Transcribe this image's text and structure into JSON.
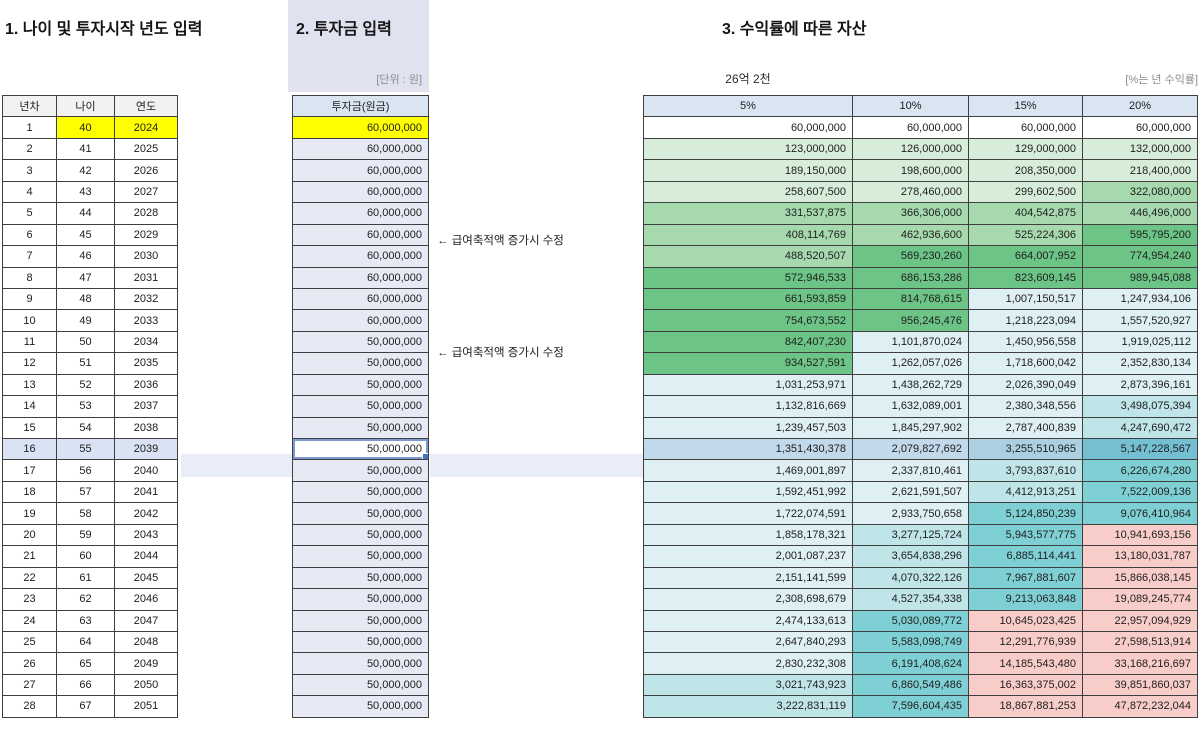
{
  "titles": {
    "section1": "1. 나이 및 투자시작 년도 입력",
    "section2": "2. 투자금 입력",
    "section3": "3. 수익률에 따른 자산"
  },
  "labels": {
    "unit": "[단위 : 원]",
    "summary": "26억 2천",
    "rate_note": "[%는 년 수익률]"
  },
  "left_table": {
    "headers": [
      "년차",
      "나이",
      "연도"
    ],
    "rows": [
      [
        1,
        40,
        2024
      ],
      [
        2,
        41,
        2025
      ],
      [
        3,
        42,
        2026
      ],
      [
        4,
        43,
        2027
      ],
      [
        5,
        44,
        2028
      ],
      [
        6,
        45,
        2029
      ],
      [
        7,
        46,
        2030
      ],
      [
        8,
        47,
        2031
      ],
      [
        9,
        48,
        2032
      ],
      [
        10,
        49,
        2033
      ],
      [
        11,
        50,
        2034
      ],
      [
        12,
        51,
        2035
      ],
      [
        13,
        52,
        2036
      ],
      [
        14,
        53,
        2037
      ],
      [
        15,
        54,
        2038
      ],
      [
        16,
        55,
        2039
      ],
      [
        17,
        56,
        2040
      ],
      [
        18,
        57,
        2041
      ],
      [
        19,
        58,
        2042
      ],
      [
        20,
        59,
        2043
      ],
      [
        21,
        60,
        2044
      ],
      [
        22,
        61,
        2045
      ],
      [
        23,
        62,
        2046
      ],
      [
        24,
        63,
        2047
      ],
      [
        25,
        64,
        2048
      ],
      [
        26,
        65,
        2049
      ],
      [
        27,
        66,
        2050
      ],
      [
        28,
        67,
        2051
      ]
    ]
  },
  "invest_table": {
    "header": "투자금(원금)",
    "values": [
      "60,000,000",
      "60,000,000",
      "60,000,000",
      "60,000,000",
      "60,000,000",
      "60,000,000",
      "60,000,000",
      "60,000,000",
      "60,000,000",
      "60,000,000",
      "50,000,000",
      "50,000,000",
      "50,000,000",
      "50,000,000",
      "50,000,000",
      "50,000,000",
      "50,000,000",
      "50,000,000",
      "50,000,000",
      "50,000,000",
      "50,000,000",
      "50,000,000",
      "50,000,000",
      "50,000,000",
      "50,000,000",
      "50,000,000",
      "50,000,000",
      "50,000,000"
    ]
  },
  "annotations": [
    {
      "row": 6,
      "text": "← 급여축적액 증가시 수정"
    },
    {
      "row": 11,
      "text": "← 급여축적액 증가시 수정"
    }
  ],
  "returns_table": {
    "headers": [
      "5%",
      "10%",
      "15%",
      "20%"
    ],
    "rows": [
      [
        "60,000,000",
        "60,000,000",
        "60,000,000",
        "60,000,000"
      ],
      [
        "123,000,000",
        "126,000,000",
        "129,000,000",
        "132,000,000"
      ],
      [
        "189,150,000",
        "198,600,000",
        "208,350,000",
        "218,400,000"
      ],
      [
        "258,607,500",
        "278,460,000",
        "299,602,500",
        "322,080,000"
      ],
      [
        "331,537,875",
        "366,306,000",
        "404,542,875",
        "446,496,000"
      ],
      [
        "408,114,769",
        "462,936,600",
        "525,224,306",
        "595,795,200"
      ],
      [
        "488,520,507",
        "569,230,260",
        "664,007,952",
        "774,954,240"
      ],
      [
        "572,946,533",
        "686,153,286",
        "823,609,145",
        "989,945,088"
      ],
      [
        "661,593,859",
        "814,768,615",
        "1,007,150,517",
        "1,247,934,106"
      ],
      [
        "754,673,552",
        "956,245,476",
        "1,218,223,094",
        "1,557,520,927"
      ],
      [
        "842,407,230",
        "1,101,870,024",
        "1,450,956,558",
        "1,919,025,112"
      ],
      [
        "934,527,591",
        "1,262,057,026",
        "1,718,600,042",
        "2,352,830,134"
      ],
      [
        "1,031,253,971",
        "1,438,262,729",
        "2,026,390,049",
        "2,873,396,161"
      ],
      [
        "1,132,816,669",
        "1,632,089,001",
        "2,380,348,556",
        "3,498,075,394"
      ],
      [
        "1,239,457,503",
        "1,845,297,902",
        "2,787,400,839",
        "4,247,690,472"
      ],
      [
        "1,351,430,378",
        "2,079,827,692",
        "3,255,510,965",
        "5,147,228,567"
      ],
      [
        "1,469,001,897",
        "2,337,810,461",
        "3,793,837,610",
        "6,226,674,280"
      ],
      [
        "1,592,451,992",
        "2,621,591,507",
        "4,412,913,251",
        "7,522,009,136"
      ],
      [
        "1,722,074,591",
        "2,933,750,658",
        "5,124,850,239",
        "9,076,410,964"
      ],
      [
        "1,858,178,321",
        "3,277,125,724",
        "5,943,577,775",
        "10,941,693,156"
      ],
      [
        "2,001,087,237",
        "3,654,838,296",
        "6,885,114,441",
        "13,180,031,787"
      ],
      [
        "2,151,141,599",
        "4,070,322,126",
        "7,967,881,607",
        "15,866,038,145"
      ],
      [
        "2,308,698,679",
        "4,527,354,338",
        "9,213,063,848",
        "19,089,245,774"
      ],
      [
        "2,474,133,613",
        "5,030,089,772",
        "10,645,023,425",
        "22,957,094,929"
      ],
      [
        "2,647,840,293",
        "5,583,098,749",
        "12,291,776,939",
        "27,598,513,914"
      ],
      [
        "2,830,232,308",
        "6,191,408,624",
        "14,185,543,480",
        "33,168,216,697"
      ],
      [
        "3,021,743,923",
        "6,860,549,486",
        "16,363,375,002",
        "39,851,860,037"
      ],
      [
        "3,222,831,119",
        "7,596,604,435",
        "18,867,881,253",
        "47,872,232,044"
      ]
    ]
  },
  "selection": {
    "active_row": 16,
    "active_cell_value": "50,000,000"
  },
  "colors": {
    "header_fill": "#d9e6f2",
    "left_header_fill": "#f2f2f2",
    "input_fill": "#e7e9f5",
    "band_fill": "#e0e2f0",
    "highlight_yellow": "#ffff00",
    "green_light": "#d7ecd9",
    "green_mid": "#a6d9ae",
    "green_dark": "#6cc487",
    "cyan_light": "#def0f3",
    "teal_light": "#c0e5e8",
    "teal_mid": "#7fd0d4",
    "pink": "#f8cdc9",
    "selection_tint": "#4472c4",
    "active_border": "#7e99cf",
    "row_gap_tint": "#e8edf8",
    "grid_border": "#3f3f3f",
    "label_gray": "#8b8b8b"
  }
}
